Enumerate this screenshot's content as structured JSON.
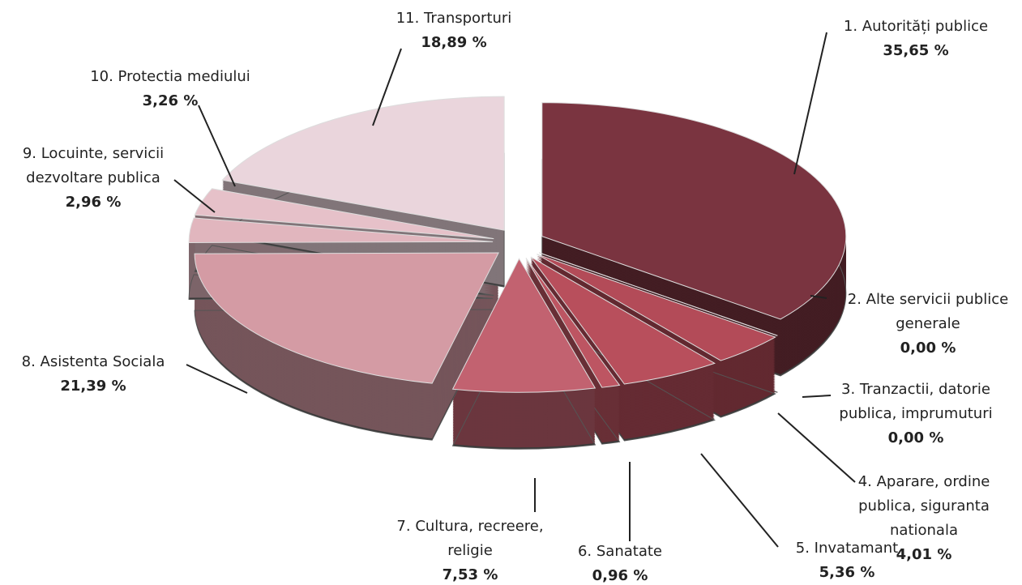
{
  "chart_data": {
    "type": "pie",
    "categories": [
      "1. Autorități publice",
      "2. Alte servicii publice generale",
      "3. Tranzactii, datorie publica, imprumuturi",
      "4. Aparare, ordine publica, siguranta nationala",
      "5. Invatamant",
      "6. Sanatate",
      "7. Cultura, recreere, religie",
      "8. Asistenta Sociala",
      "9. Locuinte, servicii dezvoltare publica",
      "10. Protectia mediului",
      "11. Transporturi"
    ],
    "values": [
      35.65,
      0.0,
      0.0,
      4.01,
      5.36,
      0.96,
      7.53,
      21.39,
      2.96,
      3.26,
      18.89
    ],
    "value_labels": [
      "35,65 %",
      "0,00 %",
      "0,00 %",
      "4,01 %",
      "5,36 %",
      "0,96 %",
      "7,53 %",
      "21,39 %",
      "2,96 %",
      "3,26 %",
      "18,89 %"
    ],
    "colors": [
      "#7a3440",
      "#b04a58",
      "#b04a58",
      "#b34b58",
      "#b84f5c",
      "#bd5562",
      "#c26270",
      "#d49ba4",
      "#e1b6be",
      "#e6c1c9",
      "#ead5dc"
    ]
  }
}
